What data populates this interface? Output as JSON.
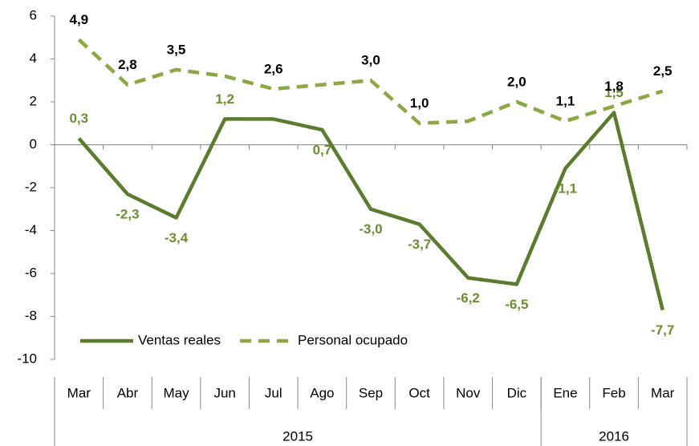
{
  "chart_data": {
    "type": "line",
    "categories": [
      "Mar",
      "Abr",
      "May",
      "Jun",
      "Jul",
      "Ago",
      "Sep",
      "Oct",
      "Nov",
      "Dic",
      "Ene",
      "Feb",
      "Mar"
    ],
    "groups": [
      {
        "name": "2015",
        "categories": 10
      },
      {
        "name": "2016",
        "categories": 3
      }
    ],
    "series": [
      {
        "name": "Ventas reales",
        "color": "#5b7b2e",
        "label_color": "#6b8e2e",
        "dashed": false,
        "values": [
          0.3,
          -2.3,
          -3.4,
          1.2,
          1.2,
          0.7,
          -3.0,
          -3.7,
          -6.2,
          -6.5,
          -1.1,
          1.5,
          -7.7
        ],
        "value_labels": [
          "0,3",
          "-2,3",
          "-3,4",
          "1,2",
          null,
          "0,7",
          "-3,0",
          "-3,7",
          "-6,2",
          "-6,5",
          "-1,1",
          "1,5",
          "-7,7"
        ]
      },
      {
        "name": "Personal ocupado",
        "color": "#8ba843",
        "label_color": "#000000",
        "dashed": true,
        "values": [
          4.9,
          2.8,
          3.5,
          3.2,
          2.6,
          2.8,
          3.0,
          1.0,
          1.1,
          2.0,
          1.1,
          1.8,
          2.5
        ],
        "value_labels": [
          "4,9",
          "2,8",
          "3,5",
          null,
          "2,6",
          null,
          "3,0",
          "1,0",
          null,
          "2,0",
          "1,1",
          "1,8",
          "2,5"
        ]
      }
    ],
    "ylim": [
      -10,
      6
    ],
    "yticks": [
      -10,
      -8,
      -6,
      -4,
      -2,
      0,
      2,
      4,
      6
    ],
    "legend": "lower left"
  }
}
